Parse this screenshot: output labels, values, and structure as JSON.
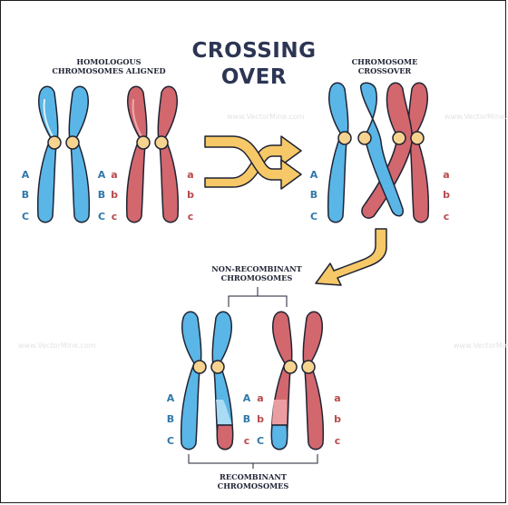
{
  "title_line1": "CROSSING",
  "title_line2": "OVER",
  "label_homologous_line1": "HOMOLOGOUS",
  "label_homologous_line2": "CHROMOSOMES ALIGNED",
  "label_crossover_line1": "CHROMOSOME",
  "label_crossover_line2": "CROSSOVER",
  "label_nonrecombinant_line1": "NON-RECOMBINANT",
  "label_nonrecombinant_line2": "CHROMOSOMES",
  "label_recombinant_line1": "RECOMBINANT",
  "label_recombinant_line2": "CHROMOSOMES",
  "alleles_upper": [
    "A",
    "B",
    "C"
  ],
  "alleles_lower": [
    "a",
    "b",
    "c"
  ],
  "watermark": "www.VectorMine.com",
  "colors": {
    "blue_fill": "#5ab6e6",
    "blue_light": "#a9dcf4",
    "red_fill": "#d2676d",
    "red_light": "#ea9ea1",
    "centromere": "#f6d48f",
    "arrow_fill": "#f6c867",
    "outline": "#1f2333"
  }
}
